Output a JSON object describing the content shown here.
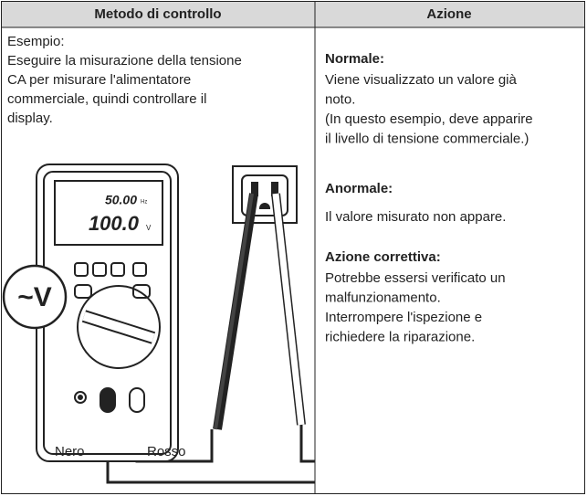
{
  "table": {
    "headers": [
      "Metodo di controllo",
      "Azione"
    ],
    "method": {
      "lines": [
        "Esempio:",
        "Eseguire la misurazione della tensione",
        "CA per misurare l'alimentatore",
        "commerciale, quindi controllare il",
        "display."
      ],
      "illustration": {
        "display_top": "50.00",
        "display_top_unit": "Hz",
        "display_main": "100.0",
        "display_main_unit": "V",
        "function": "~V",
        "lead_black": "Nero",
        "lead_red": "Rosso"
      }
    },
    "action": [
      {
        "heading": "Normale:",
        "lines": [
          "Viene visualizzato un valore già",
          "noto.",
          "(In questo esempio, deve apparire",
          "il livello di tensione commerciale.)"
        ]
      },
      {
        "heading": "Anormale:",
        "lines": [
          "Il valore misurato non appare."
        ]
      },
      {
        "heading": "Azione correttiva:",
        "lines": [
          "Potrebbe essersi verificato un",
          "malfunzionamento.",
          "Interrompere l'ispezione e",
          "richiedere la riparazione."
        ]
      }
    ]
  }
}
